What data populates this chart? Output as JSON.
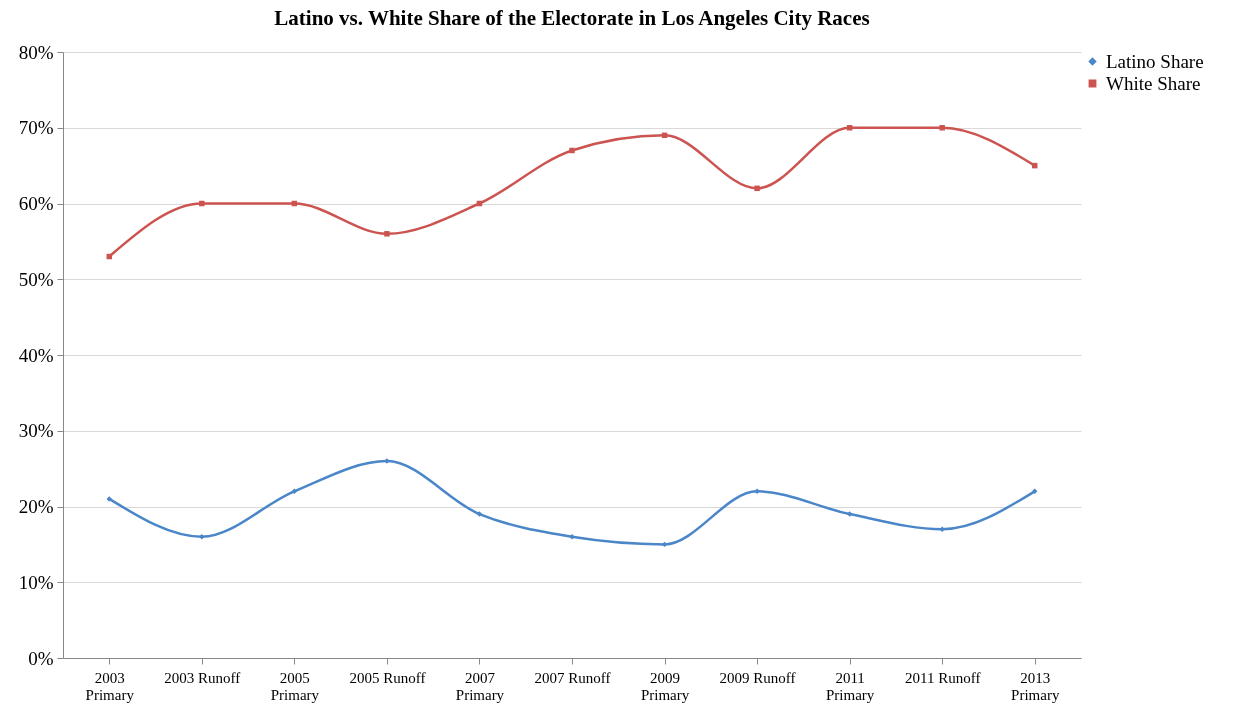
{
  "chart_data": {
    "type": "line",
    "title": "Latino vs. White Share of the Electorate in Los Angeles City Races",
    "categories": [
      "2003 Primary",
      "2003 Runoff",
      "2005 Primary",
      "2005 Runoff",
      "2007 Primary",
      "2007 Runoff",
      "2009 Primary",
      "2009 Runoff",
      "2011 Primary",
      "2011 Runoff",
      "2013 Primary"
    ],
    "series": [
      {
        "name": "Latino Share",
        "color": "#4a86c8",
        "marker": "diamond",
        "values": [
          21,
          16,
          22,
          26,
          19,
          16,
          15,
          22,
          19,
          17,
          22
        ]
      },
      {
        "name": "White Share",
        "color": "#cc5450",
        "marker": "square",
        "values": [
          53,
          60,
          60,
          56,
          60,
          67,
          69,
          62,
          70,
          70,
          65
        ]
      }
    ],
    "ylim": [
      0,
      80
    ],
    "yticks": [
      {
        "value": 0,
        "label": "0%"
      },
      {
        "value": 10,
        "label": "10%"
      },
      {
        "value": 20,
        "label": "20%"
      },
      {
        "value": 30,
        "label": "30%"
      },
      {
        "value": 40,
        "label": "40%"
      },
      {
        "value": 50,
        "label": "50%"
      },
      {
        "value": 60,
        "label": "60%"
      },
      {
        "value": 70,
        "label": "70%"
      },
      {
        "value": 80,
        "label": "80%"
      }
    ],
    "grid": "y",
    "legend": "right"
  }
}
